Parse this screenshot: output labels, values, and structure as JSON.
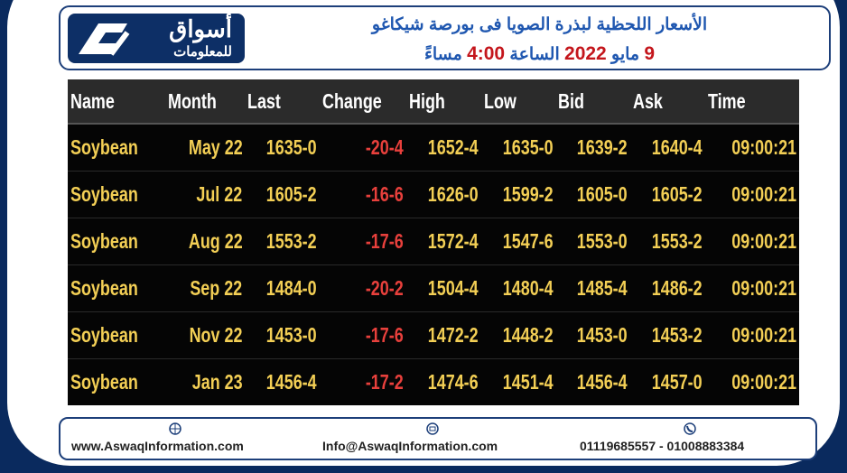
{
  "header": {
    "logo": {
      "name": "أسواق",
      "subtitle": "للمعلومات"
    },
    "title": "الأسعار اللحظية لبذرة الصويا فى بورصة شيكاغو",
    "date_line": {
      "day": "9",
      "month": "مايو",
      "year": "2022",
      "label": "الساعة",
      "time": "4:00",
      "period": "مساءً"
    }
  },
  "table": {
    "columns": [
      "Name",
      "Month",
      "Last",
      "Change",
      "High",
      "Low",
      "Bid",
      "Ask",
      "Time"
    ],
    "rows": [
      [
        "Soybean",
        "May 22",
        "1635-0",
        "-20-4",
        "1652-4",
        "1635-0",
        "1639-2",
        "1640-4",
        "09:00:21"
      ],
      [
        "Soybean",
        "Jul 22",
        "1605-2",
        "-16-6",
        "1626-0",
        "1599-2",
        "1605-0",
        "1605-2",
        "09:00:21"
      ],
      [
        "Soybean",
        "Aug 22",
        "1553-2",
        "-17-6",
        "1572-4",
        "1547-6",
        "1553-0",
        "1553-2",
        "09:00:21"
      ],
      [
        "Soybean",
        "Sep 22",
        "1484-0",
        "-20-2",
        "1504-4",
        "1480-4",
        "1485-4",
        "1486-2",
        "09:00:21"
      ],
      [
        "Soybean",
        "Nov 22",
        "1453-0",
        "-17-6",
        "1472-2",
        "1448-2",
        "1453-0",
        "1453-2",
        "09:00:21"
      ],
      [
        "Soybean",
        "Jan 23",
        "1456-4",
        "-17-2",
        "1474-6",
        "1451-4",
        "1456-4",
        "1457-0",
        "09:00:21"
      ]
    ]
  },
  "footer": {
    "website": "www.AswaqInformation.com",
    "email": "Info@AswaqInformation.com",
    "phones": "01119685557 - 01008883384"
  }
}
